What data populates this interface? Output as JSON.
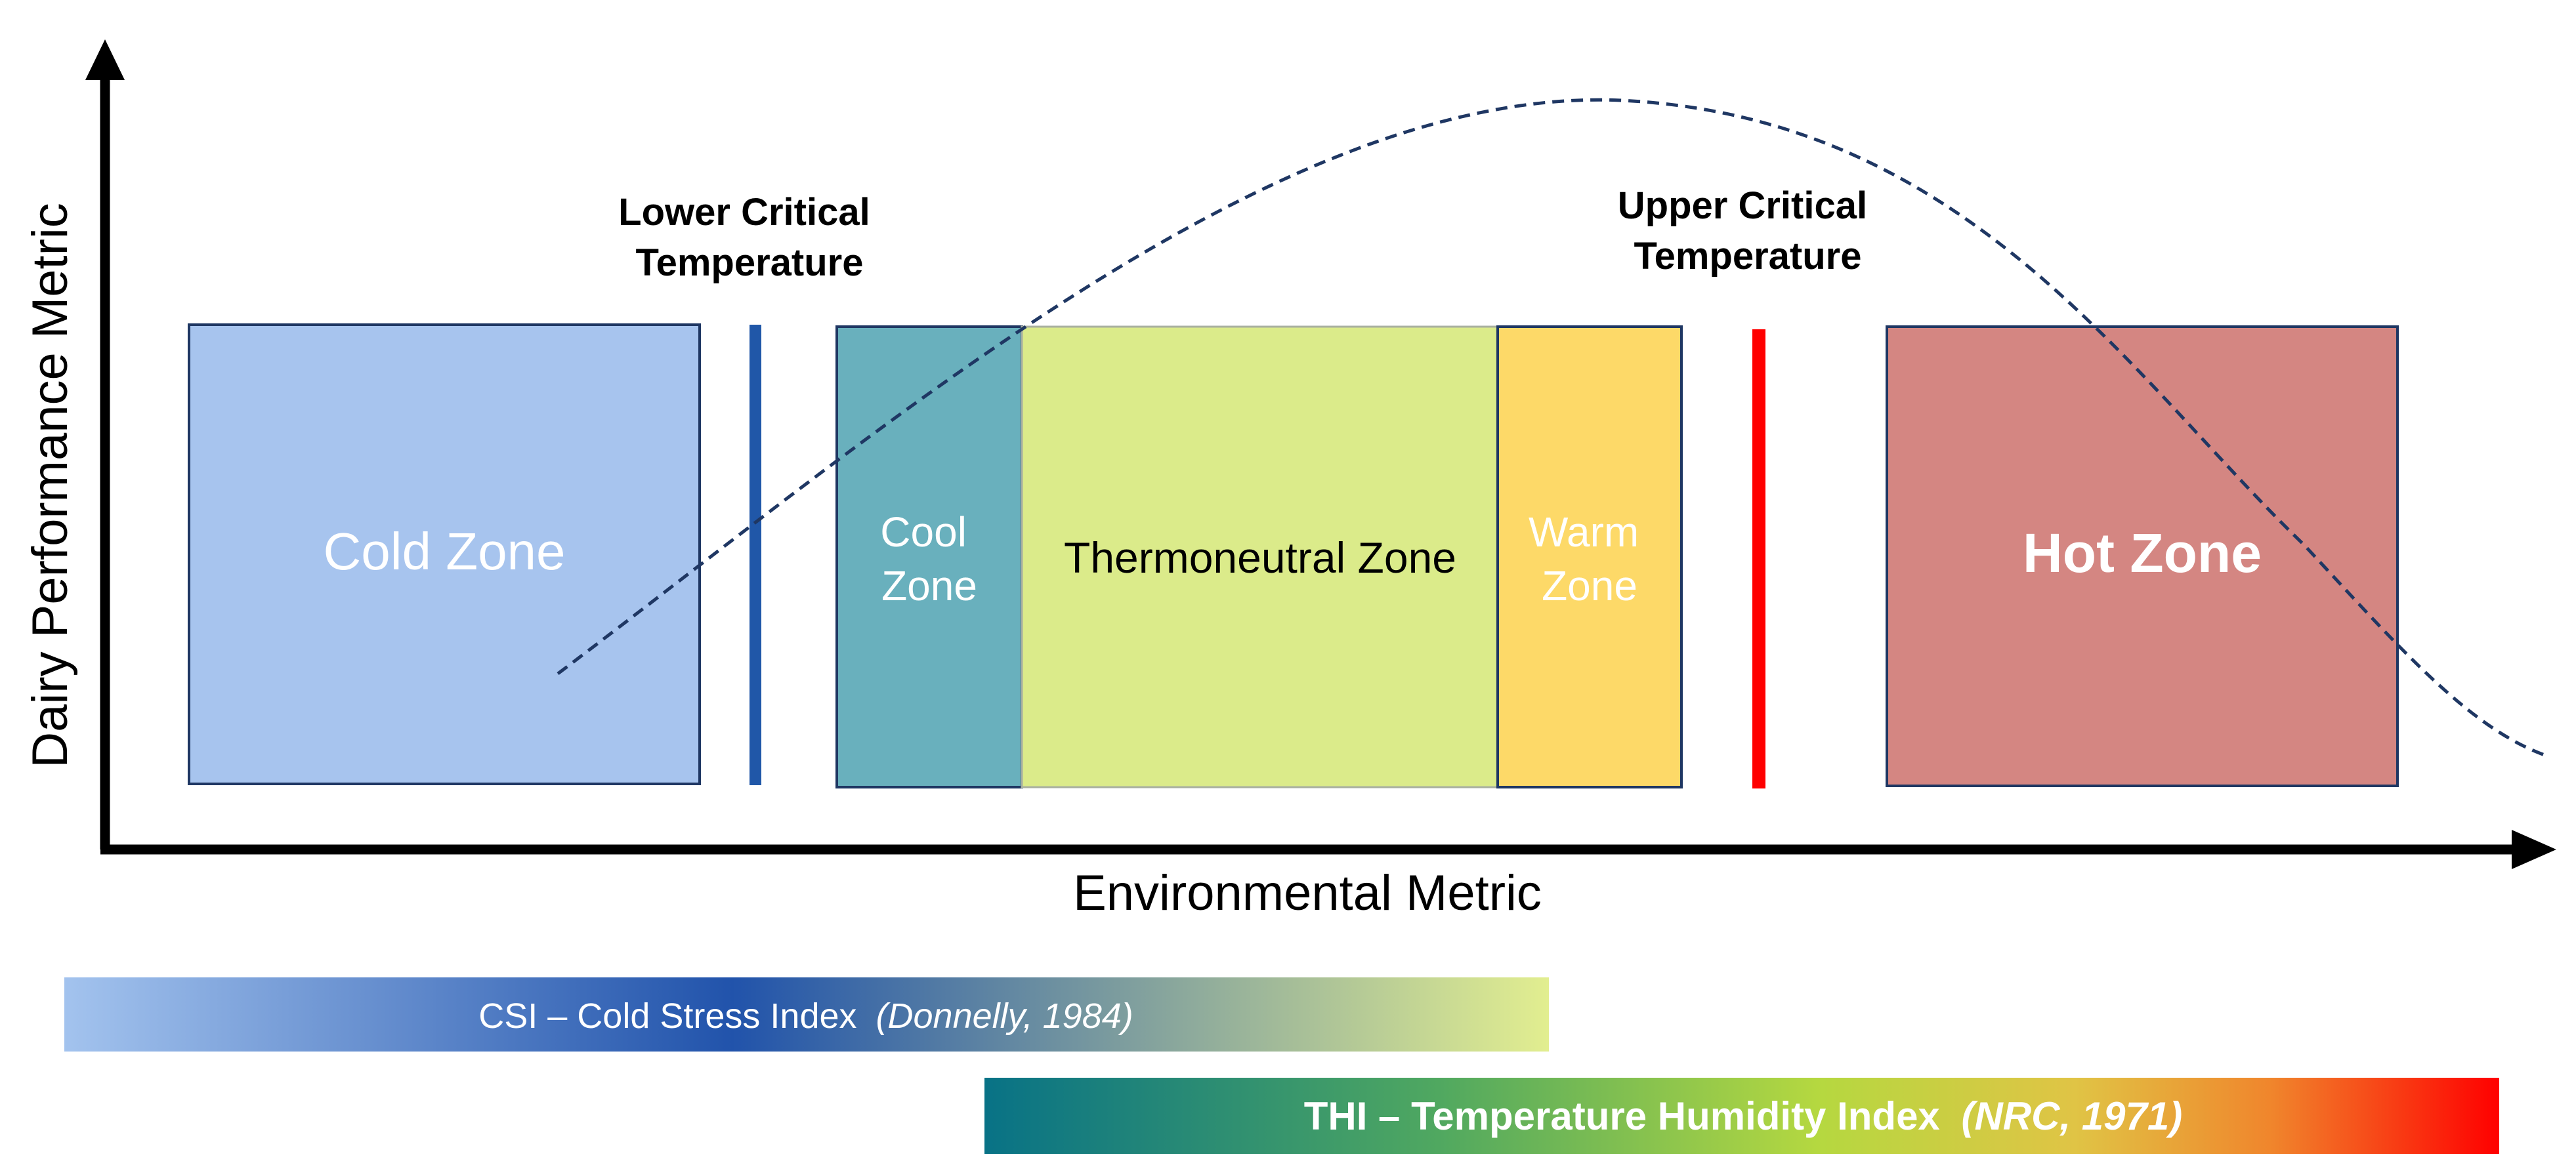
{
  "axes": {
    "x_label": "Environmental Metric",
    "y_label": "Dairy Performance Metric"
  },
  "critical_temps": {
    "lower": [
      "Lower Critical",
      "Temperature"
    ],
    "upper": [
      "Upper Critical",
      "Temperature"
    ],
    "lower_color": "#2057a8",
    "upper_color": "#ff0000"
  },
  "zones": {
    "cold": {
      "lines": [
        "Cold Zone"
      ],
      "fill": "#a7c4ee",
      "text_color": "#ffffff"
    },
    "cool": {
      "lines": [
        "Cool",
        "Zone"
      ],
      "fill": "#69b0bd",
      "text_color": "#ffffff"
    },
    "thermoneutral": {
      "lines": [
        "Thermoneutral Zone"
      ],
      "fill": "#dbeb8a",
      "text_color": "#000000"
    },
    "warm": {
      "lines": [
        "Warm",
        "Zone"
      ],
      "fill": "#fdd968",
      "text_color": "#ffffff"
    },
    "hot": {
      "lines": [
        "Hot Zone"
      ],
      "fill": "#d48682",
      "text_color": "#ffffff"
    }
  },
  "indices": {
    "csi": {
      "label": "CSI – Cold Stress Index",
      "citation": "(Donnelly, 1984)"
    },
    "thi": {
      "label": "THI – Temperature Humidity Index",
      "citation": "(NRC, 1971)"
    }
  }
}
